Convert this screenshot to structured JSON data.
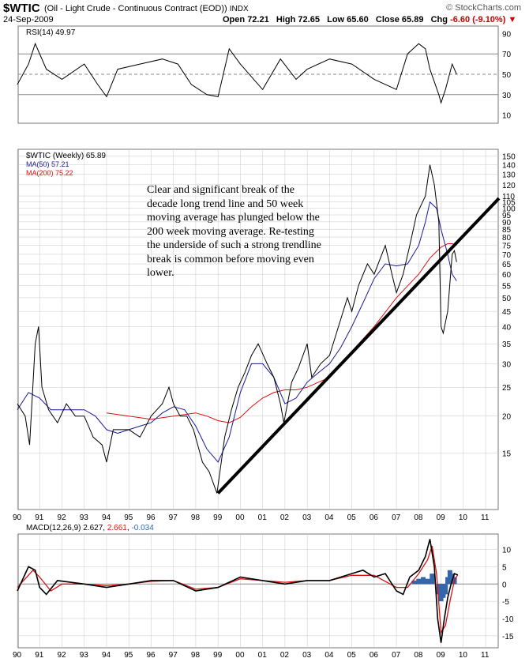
{
  "header": {
    "symbol": "$WTIC",
    "name": "(Oil - Light Crude - Continuous Contract (EOD))",
    "exchange": "INDX",
    "date": "24-Sep-2009",
    "open_label": "Open",
    "open": "72.21",
    "high_label": "High",
    "high": "72.65",
    "low_label": "Low",
    "low": "65.60",
    "close_label": "Close",
    "close": "65.89",
    "chg_label": "Chg",
    "chg": "-6.60 (-9.10%)",
    "brand": "© StockCharts.com"
  },
  "colors": {
    "price": "#000000",
    "ma50": "#1a1a99",
    "ma200": "#dd1111",
    "trendline": "#000000",
    "histogram": "#3366aa",
    "grid": "#c8c8c8",
    "ref": "#888888"
  },
  "annotation": "Clear and significant break of the decade long trend line and 50 week moving average has plunged below the 200 week moving average. Re-testing the underside of such a strong trendline break is common before moving even lower.",
  "chart_data": [
    {
      "type": "line",
      "panel": "rsi",
      "label": "RSI(14) 49.97",
      "yticks": [
        10,
        30,
        50,
        70,
        90
      ],
      "ylim": [
        5,
        95
      ],
      "reference_lines": [
        30,
        50,
        70
      ],
      "x": [
        1990.0,
        1990.5,
        1990.8,
        1991.3,
        1992.0,
        1993.0,
        1993.6,
        1994.0,
        1994.5,
        1995.5,
        1996.5,
        1997.2,
        1997.8,
        1998.5,
        1999.0,
        1999.5,
        2000.0,
        2001.0,
        2001.8,
        2002.5,
        2003.0,
        2004.0,
        2005.0,
        2006.0,
        2007.0,
        2007.5,
        2008.0,
        2008.3,
        2008.5,
        2008.9,
        2009.0,
        2009.2,
        2009.5,
        2009.7
      ],
      "y": [
        40,
        60,
        80,
        55,
        45,
        60,
        40,
        28,
        55,
        60,
        65,
        60,
        40,
        30,
        28,
        75,
        60,
        35,
        65,
        45,
        55,
        65,
        60,
        45,
        35,
        70,
        80,
        75,
        55,
        30,
        22,
        35,
        60,
        50
      ]
    },
    {
      "type": "line",
      "panel": "price",
      "title": "$WTIC (Weekly) 65.89",
      "log_scale": true,
      "ylim": [
        10,
        155
      ],
      "xlim": [
        1990.0,
        2011.6
      ],
      "x_ticks": [
        "90",
        "91",
        "92",
        "93",
        "94",
        "95",
        "96",
        "97",
        "98",
        "99",
        "00",
        "01",
        "02",
        "03",
        "04",
        "05",
        "06",
        "07",
        "08",
        "09",
        "10",
        "11"
      ],
      "yticks": [
        15,
        20,
        25,
        30,
        35,
        40,
        45,
        50,
        55,
        60,
        65,
        70,
        75,
        80,
        85,
        90,
        95,
        100,
        105,
        110,
        120,
        130,
        140,
        150
      ],
      "series": [
        {
          "name": "$WTIC (Weekly) 65.89",
          "x": [
            1990.0,
            1990.35,
            1990.55,
            1990.8,
            1990.95,
            1991.1,
            1991.4,
            1991.8,
            1992.2,
            1992.6,
            1993.0,
            1993.4,
            1993.8,
            1994.0,
            1994.3,
            1994.6,
            1995.0,
            1995.5,
            1996.0,
            1996.5,
            1996.8,
            1997.0,
            1997.3,
            1997.6,
            1997.9,
            1998.3,
            1998.6,
            1998.95,
            1999.3,
            1999.6,
            1999.9,
            2000.2,
            2000.5,
            2000.8,
            2001.2,
            2001.5,
            2001.8,
            2001.95,
            2002.3,
            2002.6,
            2003.0,
            2003.2,
            2003.6,
            2004.0,
            2004.4,
            2004.8,
            2005.0,
            2005.3,
            2005.7,
            2006.0,
            2006.5,
            2006.8,
            2007.0,
            2007.3,
            2007.6,
            2007.9,
            2008.3,
            2008.5,
            2008.7,
            2008.9,
            2009.0,
            2009.1,
            2009.3,
            2009.5,
            2009.6,
            2009.7
          ],
          "y": [
            22,
            20,
            16,
            35,
            40,
            25,
            21,
            19,
            22,
            20,
            20,
            17,
            16,
            14,
            18,
            18,
            18,
            17,
            20,
            22,
            25,
            22,
            20,
            20,
            18,
            14,
            13,
            11,
            17,
            21,
            25,
            28,
            32,
            35,
            30,
            27,
            22,
            19,
            26,
            29,
            35,
            27,
            30,
            32,
            40,
            50,
            45,
            55,
            65,
            60,
            75,
            60,
            52,
            60,
            75,
            95,
            110,
            140,
            120,
            90,
            40,
            38,
            45,
            70,
            72,
            66
          ]
        },
        {
          "name": "MA(50) 57.21",
          "x": [
            1990.0,
            1990.5,
            1991.0,
            1991.5,
            1992.0,
            1992.5,
            1993.0,
            1993.5,
            1994.0,
            1994.5,
            1995.0,
            1995.5,
            1996.0,
            1996.5,
            1997.0,
            1997.5,
            1998.0,
            1998.5,
            1999.0,
            1999.5,
            2000.0,
            2000.5,
            2001.0,
            2001.5,
            2002.0,
            2002.5,
            2003.0,
            2003.5,
            2004.0,
            2004.5,
            2005.0,
            2005.5,
            2006.0,
            2006.5,
            2007.0,
            2007.5,
            2008.0,
            2008.3,
            2008.5,
            2008.8,
            2009.0,
            2009.3,
            2009.5,
            2009.7
          ],
          "y": [
            21,
            24,
            23,
            21,
            21,
            21,
            21,
            20,
            18,
            17.5,
            18,
            18.5,
            19,
            20.5,
            21.5,
            21,
            18.5,
            15.5,
            14,
            17,
            24,
            30,
            30,
            27,
            22,
            23,
            26,
            28,
            30,
            34,
            40,
            48,
            58,
            65,
            64,
            65,
            75,
            90,
            105,
            100,
            85,
            70,
            60,
            57
          ]
        },
        {
          "name": "MA(200) 75.22",
          "x": [
            1994.0,
            1995.0,
            1996.0,
            1997.0,
            1998.0,
            1998.5,
            1999.0,
            1999.5,
            2000.0,
            2000.5,
            2001.0,
            2001.5,
            2002.0,
            2002.5,
            2003.0,
            2004.0,
            2005.0,
            2006.0,
            2007.0,
            2008.0,
            2008.5,
            2009.0,
            2009.3,
            2009.5,
            2009.7
          ],
          "y": [
            20.5,
            20,
            19.5,
            20,
            20.5,
            20,
            19.3,
            19,
            19.8,
            21.5,
            23,
            24,
            24.5,
            24.5,
            25,
            27,
            33,
            40,
            50,
            60,
            68,
            74,
            76,
            76,
            75
          ]
        }
      ],
      "trendline": {
        "x": [
          1999.0,
          2011.6
        ],
        "y": [
          11,
          108
        ]
      }
    },
    {
      "type": "line",
      "panel": "macd",
      "label": "MACD(12,26,9)",
      "values": {
        "macd": "2.627",
        "signal": "2.661",
        "histogram": "-0.034"
      },
      "yticks": [
        -15,
        -10,
        -5,
        0,
        5,
        10
      ],
      "ylim": [
        -18,
        14
      ],
      "series": [
        {
          "name": "MACD",
          "x": [
            1990.0,
            1990.5,
            1990.8,
            1991.0,
            1991.3,
            1991.8,
            1993.0,
            1994.0,
            1995.0,
            1996.0,
            1997.0,
            1998.0,
            1999.0,
            2000.0,
            2001.0,
            2002.0,
            2003.0,
            2004.0,
            2005.0,
            2005.5,
            2006.0,
            2006.5,
            2007.0,
            2007.3,
            2007.6,
            2008.0,
            2008.3,
            2008.5,
            2008.7,
            2008.85,
            2009.0,
            2009.15,
            2009.3,
            2009.45,
            2009.6,
            2009.75
          ],
          "y": [
            -2,
            5,
            4,
            -1,
            -3,
            1,
            0,
            -1,
            0,
            1,
            1,
            -2,
            -1,
            2,
            1,
            0,
            1,
            1,
            3,
            4,
            2,
            3,
            -2,
            -3,
            2,
            4,
            8,
            13,
            5,
            -10,
            -17,
            -10,
            -4,
            0,
            3,
            2.6
          ]
        },
        {
          "name": "Signal",
          "x": [
            1990.0,
            1990.7,
            1991.0,
            1991.5,
            1992.0,
            1993.0,
            1994.0,
            1995.0,
            1996.0,
            1997.0,
            1998.0,
            1999.0,
            2000.0,
            2001.0,
            2002.0,
            2003.0,
            2004.0,
            2005.0,
            2006.0,
            2007.0,
            2007.5,
            2008.0,
            2008.4,
            2008.6,
            2008.8,
            2009.0,
            2009.2,
            2009.4,
            2009.6,
            2009.75
          ],
          "y": [
            -1,
            4,
            2,
            -2,
            0,
            0,
            -0.5,
            0,
            0.8,
            1,
            -1.5,
            -1,
            1.5,
            1,
            0.5,
            1,
            1,
            2.5,
            2.5,
            -1,
            -1,
            3,
            7,
            11,
            3,
            -14,
            -12,
            -5,
            1,
            2.7
          ]
        }
      ],
      "histogram": {
        "x": [
          2007.8,
          2008.0,
          2008.2,
          2008.4,
          2008.6,
          2008.9,
          2009.0,
          2009.1,
          2009.2,
          2009.3,
          2009.4,
          2009.5,
          2009.6
        ],
        "y": [
          1,
          1.5,
          2,
          1.5,
          3,
          -3,
          -5,
          -4,
          -3,
          2,
          4,
          3,
          2
        ]
      },
      "x_ticks": [
        "90",
        "91",
        "92",
        "93",
        "94",
        "95",
        "96",
        "97",
        "98",
        "99",
        "00",
        "01",
        "02",
        "03",
        "04",
        "05",
        "06",
        "07",
        "08",
        "09",
        "10",
        "11"
      ]
    }
  ]
}
